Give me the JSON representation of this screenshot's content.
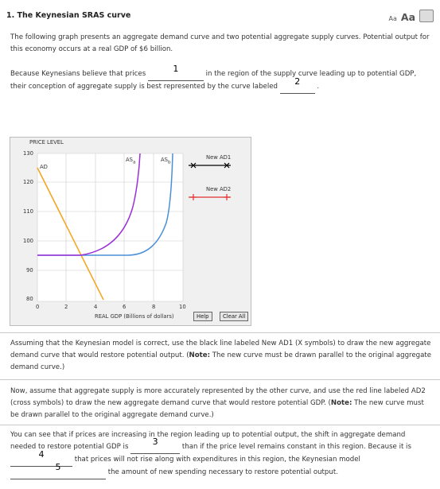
{
  "question": {
    "title": "1. The Keynesian SRAS curve",
    "font_small": "Aa",
    "font_large": "Aa",
    "intro": "The following graph presents an aggregate demand curve and two potential aggregate supply curves. Potential output for this economy occurs at a real GDP of $6 billion.",
    "s1_part1": "Because Keynesians believe that prices",
    "s1_answer1": "1",
    "s1_part2": "in the region of the supply curve leading up to potential GDP,",
    "s1_part3": "their conception of aggregate supply is best represented by the curve labeled",
    "s1_answer2": "2",
    "s1_end": "."
  },
  "graph": {
    "y_title": "PRICE LEVEL",
    "x_title": "REAL GDP (Billions of dollars)",
    "y_ticks": [
      "130",
      "120",
      "110",
      "100",
      "90",
      "80"
    ],
    "x_ticks": [
      "0",
      "2",
      "4",
      "6",
      "8",
      "10"
    ],
    "curve_labels": {
      "ad": "AD",
      "as_a": "AS",
      "as_a_sub": "a",
      "as_b": "AS",
      "as_b_sub": "b"
    },
    "legend": [
      {
        "label": "New AD1",
        "symbol": "×",
        "color": "#000000"
      },
      {
        "label": "New AD2",
        "symbol": "+",
        "color": "#e03030"
      }
    ],
    "help_button": "Help",
    "clear_button": "Clear All",
    "colors": {
      "ad": "#f5a623",
      "as_a": "#9b30d9",
      "as_b": "#4a90d9",
      "potential": "#9b30d9"
    }
  },
  "section2": {
    "p1": "Assuming that the Keynesian model is correct, use the black line labeled New AD1 (X symbols) to draw the new aggregate demand curve that would restore potential output.",
    "note_label": "Note:",
    "p1_note": "The new curve must be drawn parallel to the original aggregate demand curve.)",
    "p1_open": "(",
    "p2": "Now, assume that aggregate supply is more accurately represented by the other curve, and use the red line labeled AD2 (cross symbols) to draw the new aggregate demand curve that would restore potential GDP.",
    "p2_note": "The new curve must be drawn parallel to the original aggregate demand curve.)",
    "p3_a": "You can see that if prices are increasing in the region leading up to potential output, the shift in aggregate demand needed to restore potential GDP is",
    "p3_ans3": "3",
    "p3_b": "than if the price level remains constant in this region. Because it is",
    "p3_ans4": "4",
    "p3_c": "that prices will not rise along with expenditures in this region, the Keynesian model",
    "p3_ans5": "5",
    "p3_d": "the amount of new spending necessary to restore potential output."
  }
}
